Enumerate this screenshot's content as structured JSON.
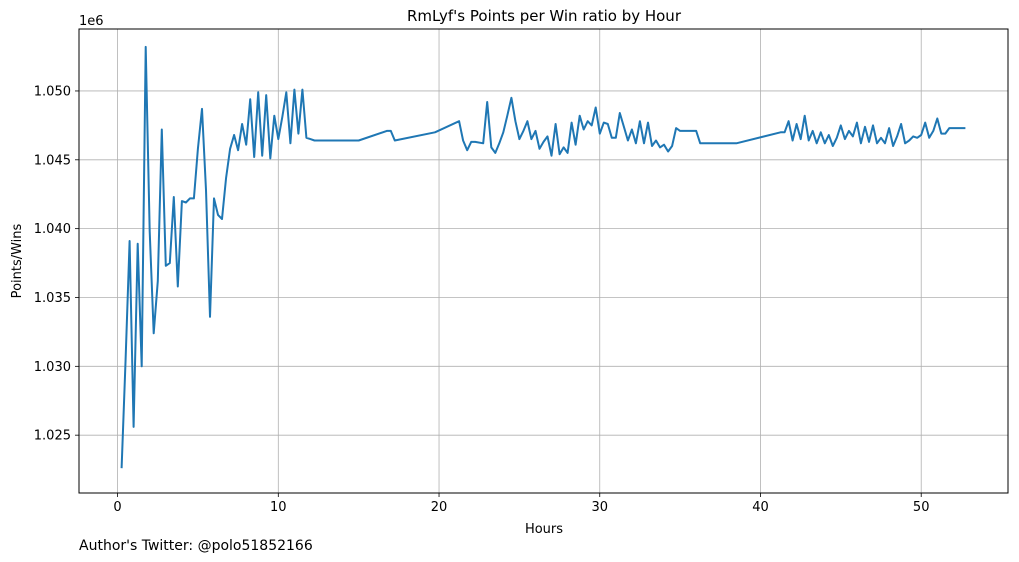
{
  "chart_data": {
    "type": "line",
    "title": "RmLyf's Points per Win ratio by Hour",
    "xlabel": "Hours",
    "ylabel": "Points/Wins",
    "y_offset_label": "1e6",
    "xlim": [
      -2.4,
      55.4
    ],
    "ylim": [
      1.0208,
      1.0545
    ],
    "x_ticks": [
      0,
      10,
      20,
      30,
      40,
      50
    ],
    "x_tick_labels": [
      "0",
      "10",
      "20",
      "30",
      "40",
      "50"
    ],
    "y_ticks": [
      1.025,
      1.03,
      1.035,
      1.04,
      1.045,
      1.05
    ],
    "y_tick_labels": [
      "1.025",
      "1.030",
      "1.035",
      "1.040",
      "1.045",
      "1.050"
    ],
    "grid": true,
    "line_color": "#1f77b4",
    "series": [
      {
        "x": [
          0.25,
          0.5,
          0.75,
          1.0,
          1.25,
          1.5,
          1.75,
          2.0,
          2.25,
          2.5,
          2.75,
          3.0,
          3.25,
          3.5,
          3.75,
          4.0,
          4.25,
          4.5,
          4.75,
          5.0,
          5.25,
          5.5,
          5.75,
          6.0,
          6.25,
          6.5,
          6.75,
          7.0,
          7.25,
          7.5,
          7.75,
          8.0,
          8.25,
          8.5,
          8.75,
          9.0,
          9.25,
          9.5,
          9.75,
          10.0,
          10.25,
          10.5,
          10.75,
          11.0,
          11.25,
          11.5,
          11.75,
          12.0,
          12.25,
          15.0,
          16.75,
          17.0,
          17.25,
          19.75,
          21.25,
          21.5,
          21.75,
          22.0,
          22.25,
          22.75,
          23.0,
          23.25,
          23.5,
          23.75,
          24.0,
          24.25,
          24.5,
          24.75,
          25.0,
          25.25,
          25.5,
          25.75,
          26.0,
          26.25,
          26.5,
          26.75,
          27.0,
          27.25,
          27.5,
          27.75,
          28.0,
          28.25,
          28.5,
          28.75,
          29.0,
          29.25,
          29.5,
          29.75,
          30.0,
          30.25,
          30.5,
          30.75,
          31.0,
          31.25,
          31.5,
          31.75,
          32.0,
          32.25,
          32.5,
          32.75,
          33.0,
          33.25,
          33.5,
          33.75,
          34.0,
          34.25,
          34.5,
          34.75,
          35.0,
          36.0,
          36.25,
          38.25,
          38.5,
          41.25,
          41.5,
          41.75,
          42.0,
          42.25,
          42.5,
          42.75,
          43.0,
          43.25,
          43.5,
          43.75,
          44.0,
          44.25,
          44.5,
          44.75,
          45.0,
          45.25,
          45.5,
          45.75,
          46.0,
          46.25,
          46.5,
          46.75,
          47.0,
          47.25,
          47.5,
          47.75,
          48.0,
          48.25,
          48.5,
          48.75,
          49.0,
          49.25,
          49.5,
          49.75,
          50.0,
          50.25,
          50.5,
          50.75,
          51.0,
          51.25,
          51.5,
          51.75,
          52.0,
          52.25,
          52.75
        ],
        "y": [
          1.0226,
          1.0305,
          1.0391,
          1.0256,
          1.0389,
          1.03,
          1.0532,
          1.0398,
          1.0324,
          1.0362,
          1.0472,
          1.0373,
          1.0375,
          1.0423,
          1.0358,
          1.042,
          1.0419,
          1.0422,
          1.0422,
          1.0458,
          1.0487,
          1.0428,
          1.0336,
          1.0422,
          1.041,
          1.0407,
          1.0437,
          1.0458,
          1.0468,
          1.0457,
          1.0476,
          1.0461,
          1.0494,
          1.0452,
          1.0499,
          1.0453,
          1.0497,
          1.0451,
          1.0482,
          1.0465,
          1.0481,
          1.0499,
          1.0462,
          1.0501,
          1.0469,
          1.0501,
          1.0466,
          1.0465,
          1.0464,
          1.0464,
          1.0471,
          1.0471,
          1.0464,
          1.047,
          1.0478,
          1.0464,
          1.0457,
          1.0463,
          1.0463,
          1.0462,
          1.0492,
          1.0459,
          1.0455,
          1.0462,
          1.047,
          1.0482,
          1.0495,
          1.0478,
          1.0465,
          1.0471,
          1.0478,
          1.0465,
          1.0471,
          1.0458,
          1.0463,
          1.0467,
          1.0453,
          1.0476,
          1.0454,
          1.0459,
          1.0455,
          1.0477,
          1.0461,
          1.0482,
          1.0472,
          1.0478,
          1.0475,
          1.0488,
          1.0469,
          1.0477,
          1.0476,
          1.0466,
          1.0466,
          1.0484,
          1.0474,
          1.0464,
          1.0472,
          1.0462,
          1.0478,
          1.0462,
          1.0477,
          1.046,
          1.0464,
          1.0459,
          1.0461,
          1.0456,
          1.046,
          1.0473,
          1.0471,
          1.0471,
          1.0462,
          1.0462,
          1.0462,
          1.047,
          1.047,
          1.0478,
          1.0464,
          1.0476,
          1.0465,
          1.0482,
          1.0464,
          1.0471,
          1.0462,
          1.047,
          1.0462,
          1.0468,
          1.046,
          1.0466,
          1.0475,
          1.0465,
          1.0471,
          1.0467,
          1.0477,
          1.0462,
          1.0474,
          1.0463,
          1.0475,
          1.0462,
          1.0466,
          1.0462,
          1.0473,
          1.046,
          1.0467,
          1.0476,
          1.0462,
          1.0464,
          1.0467,
          1.0466,
          1.0468,
          1.0477,
          1.0466,
          1.0471,
          1.048,
          1.0469,
          1.0469,
          1.0473,
          1.0473,
          1.0473,
          1.0473
        ]
      }
    ]
  },
  "credit_text": "Author's Twitter: @polo51852166"
}
